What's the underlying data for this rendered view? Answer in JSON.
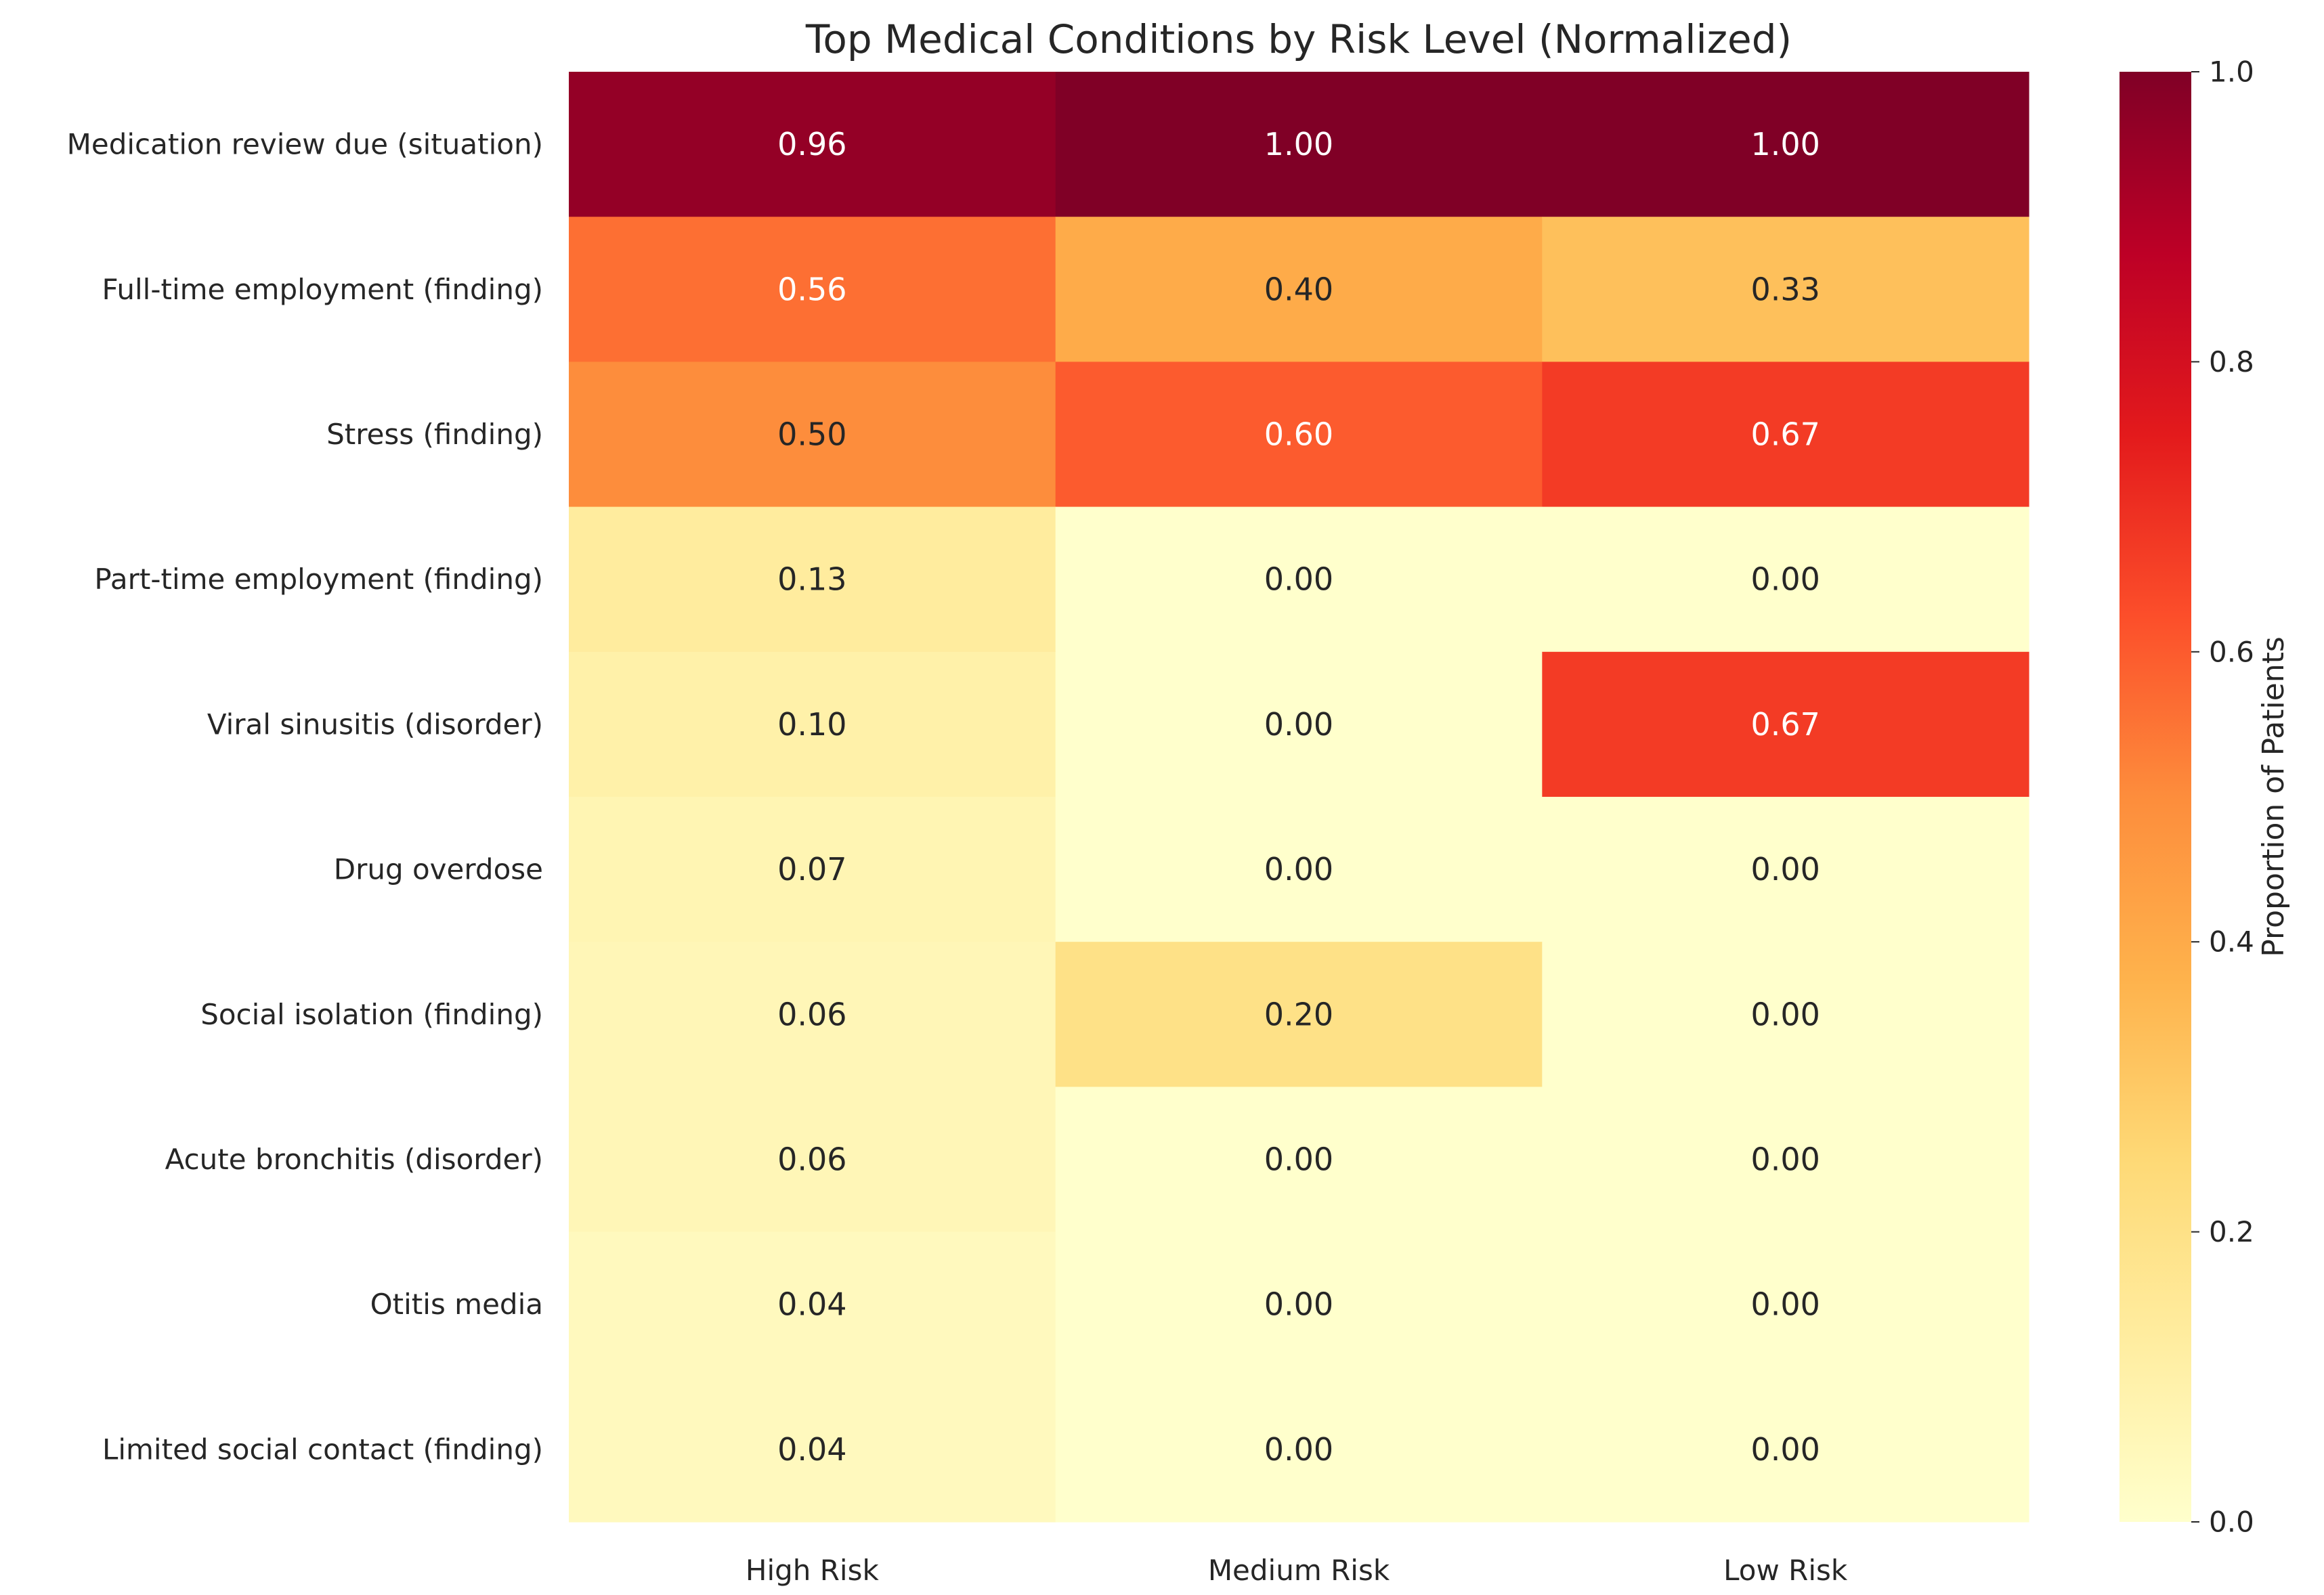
{
  "chart_data": {
    "type": "heatmap",
    "title": "Top Medical Conditions by Risk Level (Normalized)",
    "xlabel": "",
    "ylabel": "",
    "columns": [
      "High Risk",
      "Medium Risk",
      "Low Risk"
    ],
    "rows": [
      "Medication review due (situation)",
      "Full-time employment (finding)",
      "Stress (finding)",
      "Part-time employment (finding)",
      "Viral sinusitis (disorder)",
      "Drug overdose",
      "Social isolation (finding)",
      "Acute bronchitis (disorder)",
      "Otitis media",
      "Limited social contact (finding)"
    ],
    "values": [
      [
        0.96,
        1.0,
        1.0
      ],
      [
        0.56,
        0.4,
        0.33
      ],
      [
        0.5,
        0.6,
        0.67
      ],
      [
        0.13,
        0.0,
        0.0
      ],
      [
        0.1,
        0.0,
        0.67
      ],
      [
        0.07,
        0.0,
        0.0
      ],
      [
        0.06,
        0.2,
        0.0
      ],
      [
        0.06,
        0.0,
        0.0
      ],
      [
        0.04,
        0.0,
        0.0
      ],
      [
        0.04,
        0.0,
        0.0
      ]
    ],
    "colormap": "YlOrRd",
    "vmin": 0.0,
    "vmax": 1.0,
    "colorbar": {
      "label": "Proportion of Patients",
      "ticks": [
        "0.0",
        "0.2",
        "0.4",
        "0.6",
        "0.8",
        "1.0"
      ]
    }
  }
}
